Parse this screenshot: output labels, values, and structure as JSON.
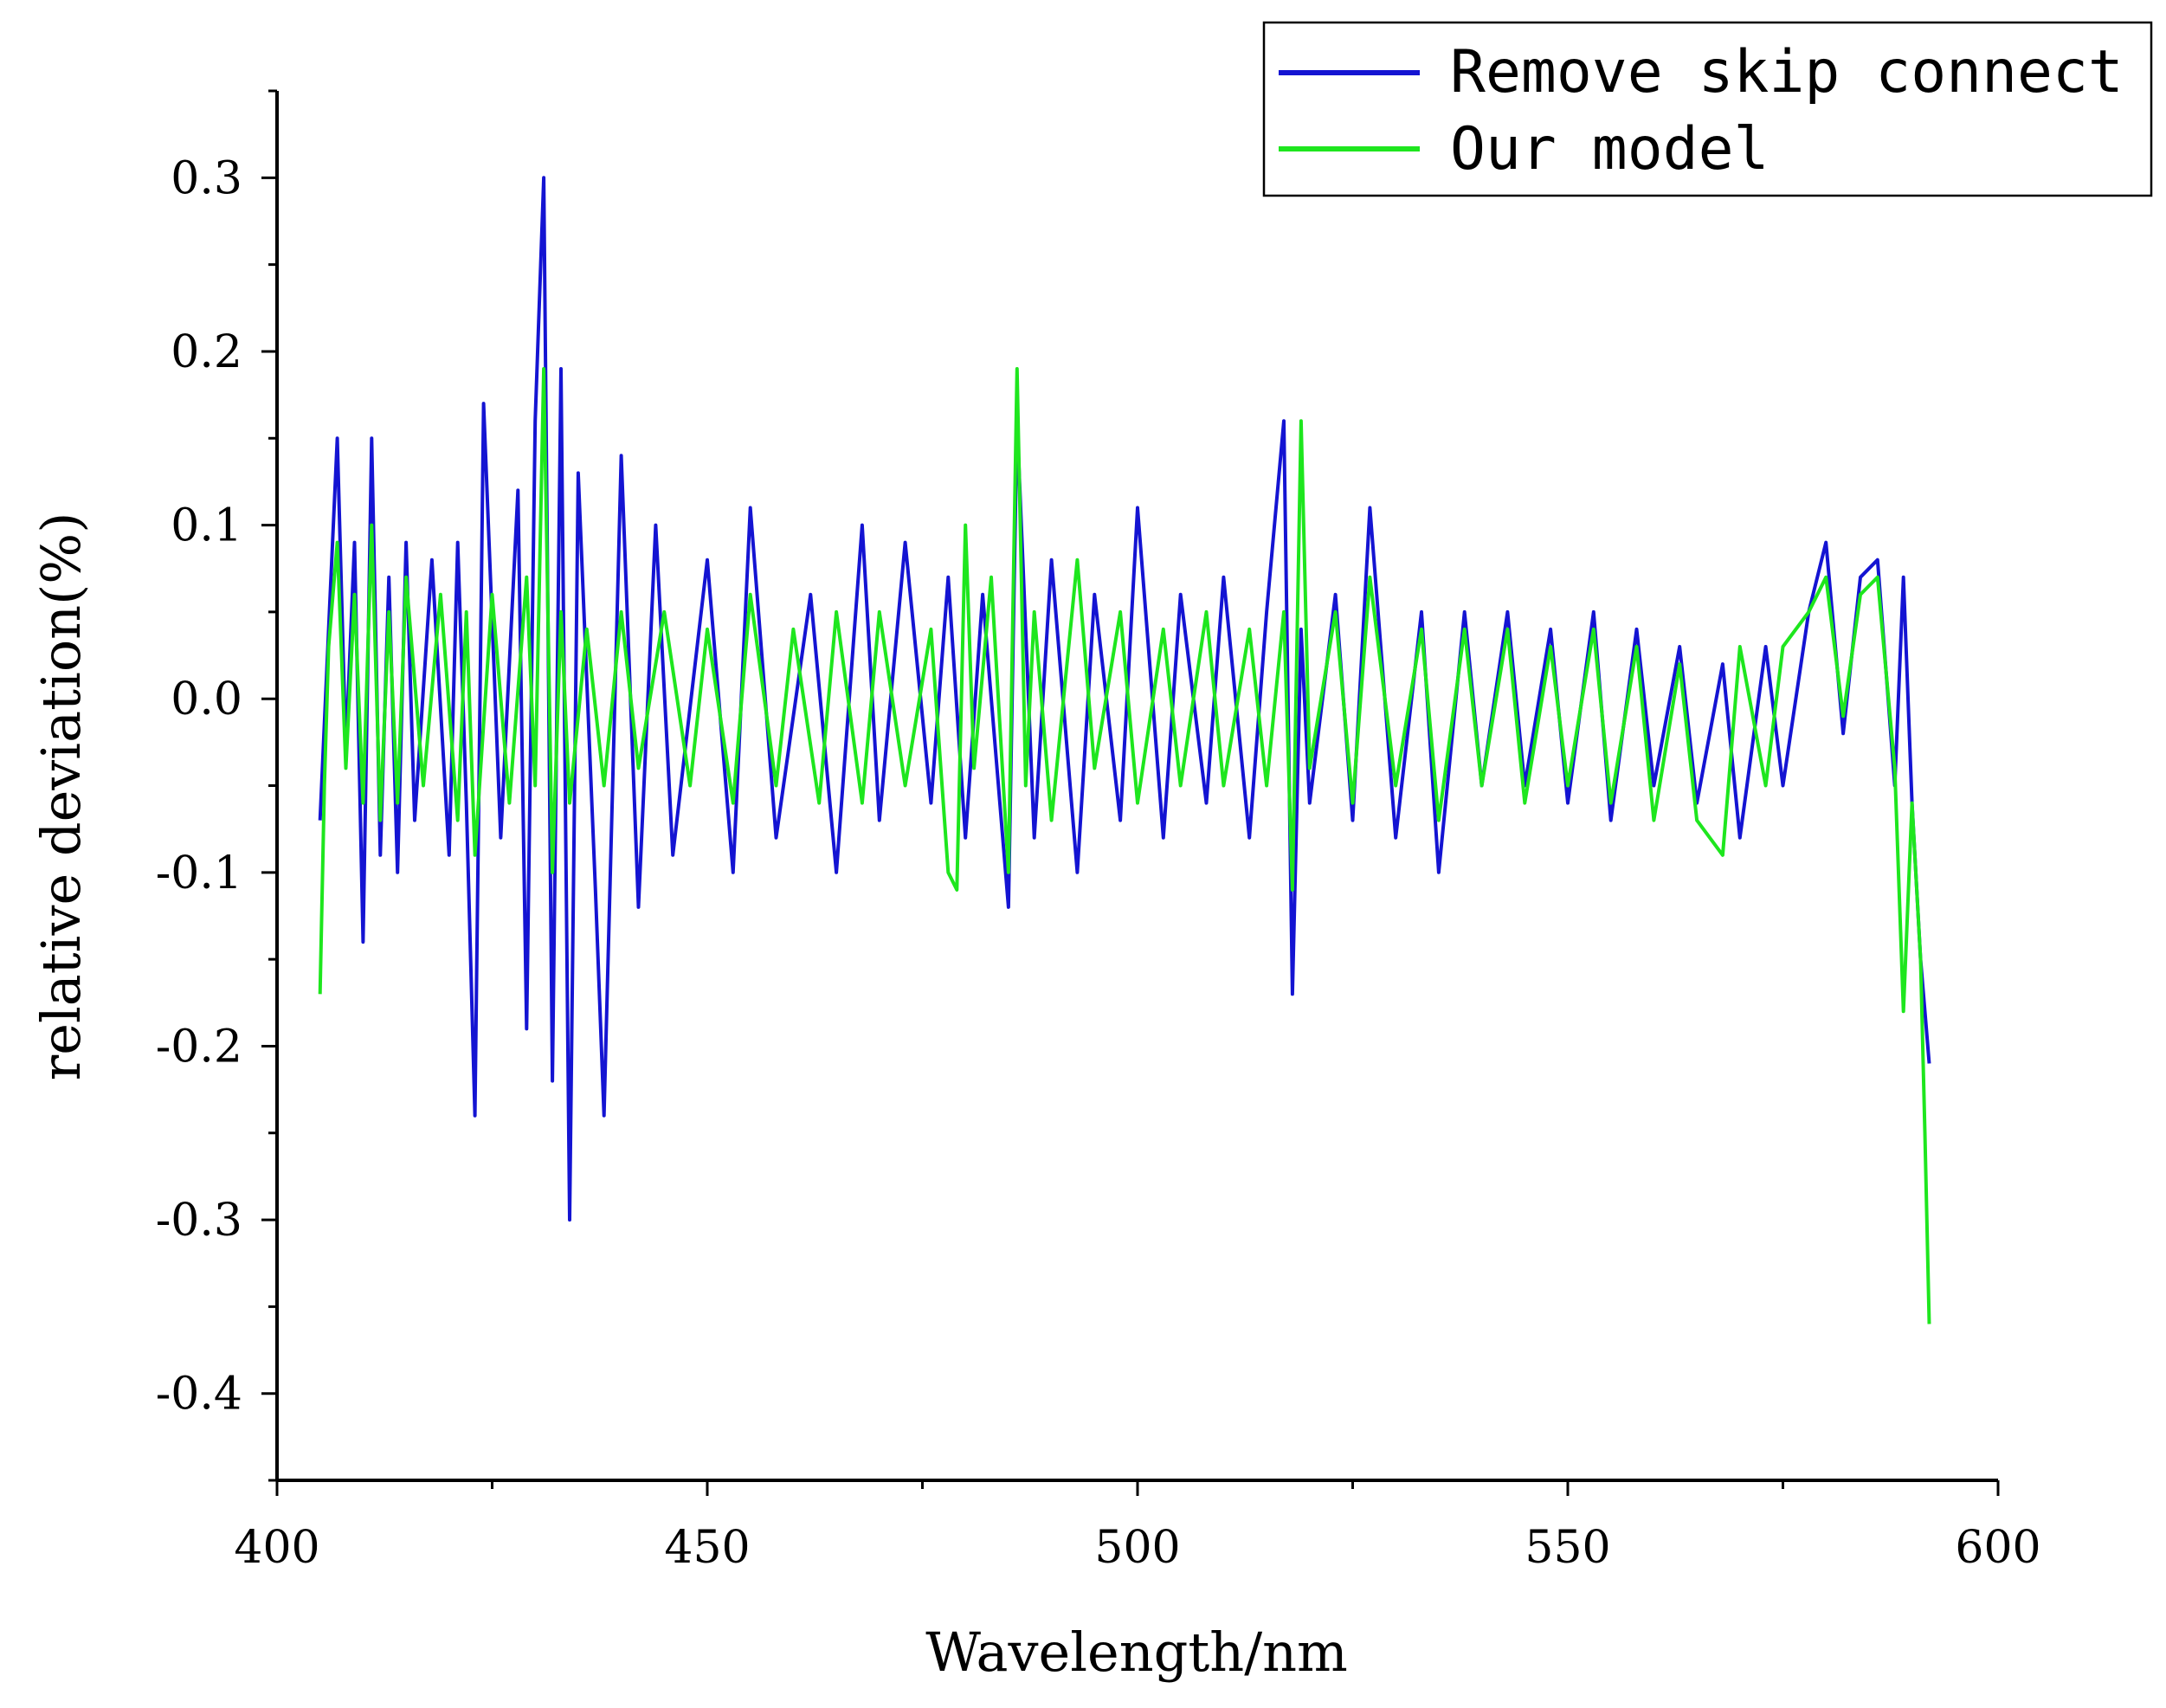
{
  "chart_data": {
    "type": "line",
    "xlabel": "Wavelength/nm",
    "ylabel": "relative deviation(%)",
    "xlim": [
      400,
      600
    ],
    "ylim": [
      -0.45,
      0.35
    ],
    "x_ticks": [
      400,
      450,
      500,
      550,
      600
    ],
    "x_tick_labels": [
      "400",
      "450",
      "500",
      "550",
      "600"
    ],
    "y_ticks": [
      0.3,
      0.2,
      0.1,
      0.0,
      -0.1,
      -0.2,
      -0.3,
      -0.4
    ],
    "y_tick_labels": [
      "0.3",
      "0.2",
      "0.1",
      "0.0",
      "-0.1",
      "-0.2",
      "-0.3",
      "-0.4"
    ],
    "grid": false,
    "legend_position": "top-right",
    "series": [
      {
        "name": "Remove skip connect",
        "color": "#1414d2",
        "x": [
          405,
          406,
          407,
          408,
          409,
          410,
          411,
          412,
          413,
          414,
          415,
          416,
          418,
          420,
          421,
          422,
          423,
          424,
          426,
          428,
          429,
          430,
          431,
          432,
          433,
          434,
          435,
          437,
          438,
          440,
          442,
          444,
          446,
          450,
          453,
          455,
          458,
          462,
          465,
          468,
          470,
          473,
          476,
          478,
          480,
          482,
          485,
          486,
          488,
          490,
          493,
          495,
          498,
          500,
          503,
          505,
          508,
          510,
          513,
          515,
          517,
          518,
          519,
          520,
          523,
          525,
          527,
          530,
          533,
          535,
          538,
          540,
          543,
          545,
          548,
          550,
          553,
          555,
          558,
          560,
          563,
          565,
          568,
          570,
          573,
          575,
          578,
          580,
          582,
          584,
          586,
          588,
          589,
          590,
          591,
          592
        ],
        "y": [
          -0.07,
          0.04,
          0.15,
          -0.03,
          0.09,
          -0.14,
          0.15,
          -0.09,
          0.07,
          -0.1,
          0.09,
          -0.07,
          0.08,
          -0.09,
          0.09,
          -0.06,
          -0.24,
          0.17,
          -0.08,
          0.12,
          -0.19,
          0.16,
          0.3,
          -0.22,
          0.19,
          -0.3,
          0.13,
          -0.11,
          -0.24,
          0.14,
          -0.12,
          0.1,
          -0.09,
          0.08,
          -0.1,
          0.11,
          -0.08,
          0.06,
          -0.1,
          0.1,
          -0.07,
          0.09,
          -0.06,
          0.07,
          -0.08,
          0.06,
          -0.12,
          0.16,
          -0.08,
          0.08,
          -0.1,
          0.06,
          -0.07,
          0.11,
          -0.08,
          0.06,
          -0.06,
          0.07,
          -0.08,
          0.05,
          0.16,
          -0.17,
          0.04,
          -0.06,
          0.06,
          -0.07,
          0.11,
          -0.08,
          0.05,
          -0.1,
          0.05,
          -0.05,
          0.05,
          -0.05,
          0.04,
          -0.06,
          0.05,
          -0.07,
          0.04,
          -0.05,
          0.03,
          -0.06,
          0.02,
          -0.08,
          0.03,
          -0.05,
          0.05,
          0.09,
          -0.02,
          0.07,
          0.08,
          -0.05,
          0.07,
          -0.06,
          -0.15,
          -0.21
        ]
      },
      {
        "name": "Our model",
        "color": "#1ee61e",
        "x": [
          405,
          405.5,
          406,
          407,
          408,
          409,
          410,
          411,
          412,
          413,
          414,
          415,
          417,
          419,
          421,
          422,
          423,
          425,
          427,
          429,
          430,
          431,
          432,
          433,
          434,
          436,
          438,
          440,
          442,
          445,
          448,
          450,
          453,
          455,
          458,
          460,
          463,
          465,
          468,
          470,
          473,
          476,
          478,
          479,
          480,
          481,
          483,
          485,
          486,
          487,
          488,
          490,
          493,
          495,
          498,
          500,
          503,
          505,
          508,
          510,
          513,
          515,
          517,
          518,
          519,
          520,
          523,
          525,
          527,
          530,
          533,
          535,
          538,
          540,
          543,
          545,
          548,
          550,
          553,
          555,
          558,
          560,
          563,
          565,
          568,
          570,
          573,
          575,
          578,
          580,
          582,
          584,
          586,
          588,
          589,
          590,
          591,
          591.5,
          592
        ],
        "y": [
          -0.17,
          -0.05,
          0.03,
          0.09,
          -0.04,
          0.06,
          -0.06,
          0.1,
          -0.07,
          0.05,
          -0.06,
          0.07,
          -0.05,
          0.06,
          -0.07,
          0.05,
          -0.09,
          0.06,
          -0.06,
          0.07,
          -0.05,
          0.19,
          -0.1,
          0.05,
          -0.06,
          0.04,
          -0.05,
          0.05,
          -0.04,
          0.05,
          -0.05,
          0.04,
          -0.06,
          0.06,
          -0.05,
          0.04,
          -0.06,
          0.05,
          -0.06,
          0.05,
          -0.05,
          0.04,
          -0.1,
          -0.11,
          0.1,
          -0.04,
          0.07,
          -0.1,
          0.19,
          -0.05,
          0.05,
          -0.07,
          0.08,
          -0.04,
          0.05,
          -0.06,
          0.04,
          -0.05,
          0.05,
          -0.05,
          0.04,
          -0.05,
          0.05,
          -0.11,
          0.16,
          -0.04,
          0.05,
          -0.06,
          0.07,
          -0.05,
          0.04,
          -0.07,
          0.04,
          -0.05,
          0.04,
          -0.06,
          0.03,
          -0.05,
          0.04,
          -0.06,
          0.03,
          -0.07,
          0.02,
          -0.07,
          -0.09,
          0.03,
          -0.05,
          0.03,
          0.05,
          0.07,
          -0.01,
          0.06,
          0.07,
          -0.04,
          -0.18,
          -0.06,
          -0.15,
          -0.25,
          -0.36
        ]
      }
    ]
  }
}
